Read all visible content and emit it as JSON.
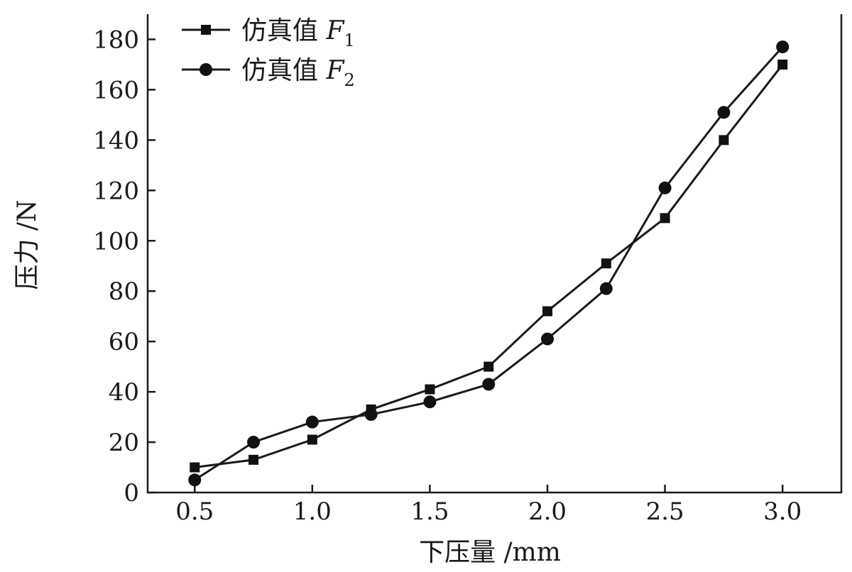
{
  "chart_data": {
    "type": "line",
    "xlabel": "下压量 /mm",
    "ylabel": "压力 /N",
    "xlim": [
      0.3,
      3.25
    ],
    "ylim": [
      0,
      190
    ],
    "xticks": [
      0.5,
      1.0,
      1.5,
      2.0,
      2.5,
      3.0
    ],
    "xtick_labels": [
      "0.5",
      "1.0",
      "1.5",
      "2.0",
      "2.5",
      "3.0"
    ],
    "yticks": [
      0,
      20,
      40,
      60,
      80,
      100,
      120,
      140,
      160,
      180
    ],
    "yticks_labels": [
      "0",
      "20",
      "40",
      "60",
      "80",
      "100",
      "120",
      "140",
      "160",
      "180"
    ],
    "grid": false,
    "legend_position": "top-left",
    "series": [
      {
        "name": "仿真值",
        "symbol": "F",
        "subscript": "1",
        "marker": "square",
        "x": [
          0.5,
          0.75,
          1.0,
          1.25,
          1.5,
          1.75,
          2.0,
          2.25,
          2.5,
          2.75,
          3.0
        ],
        "y": [
          10,
          13,
          21,
          33,
          41,
          50,
          72,
          91,
          109,
          140,
          170
        ]
      },
      {
        "name": "仿真值",
        "symbol": "F",
        "subscript": "2",
        "marker": "circle",
        "x": [
          0.5,
          0.75,
          1.0,
          1.25,
          1.5,
          1.75,
          2.0,
          2.25,
          2.5,
          2.75,
          3.0
        ],
        "y": [
          5,
          20,
          28,
          31,
          36,
          43,
          61,
          81,
          121,
          151,
          177
        ]
      }
    ]
  }
}
